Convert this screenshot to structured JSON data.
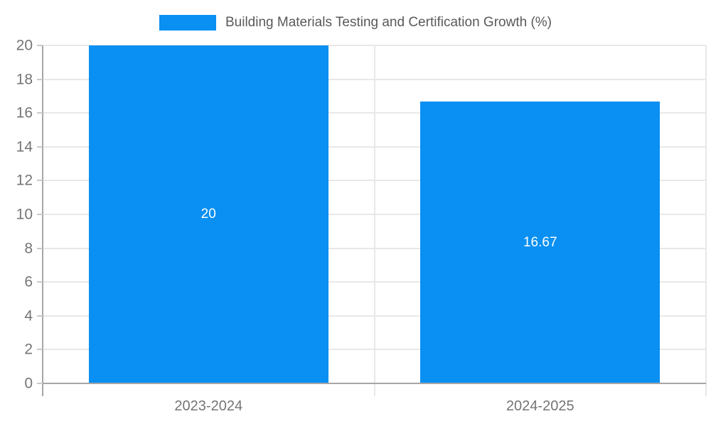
{
  "chart_data": {
    "type": "bar",
    "title": "Building Materials Testing and Certification Growth (%)",
    "categories": [
      "2023-2024",
      "2024-2025"
    ],
    "values": [
      20,
      16.67
    ],
    "value_labels": [
      "20",
      "16.67"
    ],
    "xlabel": "",
    "ylabel": "",
    "ylim": [
      0,
      20
    ],
    "yticks": [
      0,
      2,
      4,
      6,
      8,
      10,
      12,
      14,
      16,
      18,
      20
    ],
    "grid": true,
    "legend_position": "top",
    "colors": {
      "bar": "#0a8ff2",
      "gridline": "#e8e8e8",
      "axis_line": "#a6a6a6",
      "tick_mark": "#c9c9c9",
      "tick_label": "#757575",
      "title": "#58595b",
      "value_label": "#ffffff"
    }
  }
}
